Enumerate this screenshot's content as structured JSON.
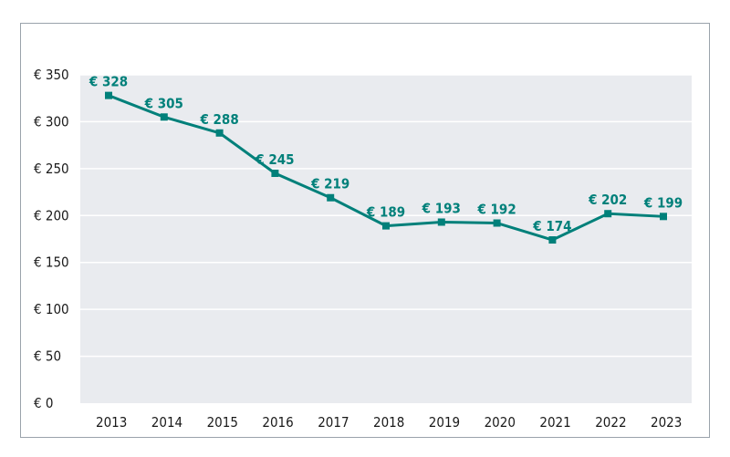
{
  "chart_data": {
    "type": "line",
    "categories": [
      "2013",
      "2014",
      "2015",
      "2016",
      "2017",
      "2018",
      "2019",
      "2020",
      "2021",
      "2022",
      "2023"
    ],
    "values": [
      328,
      305,
      288,
      245,
      219,
      189,
      193,
      192,
      174,
      202,
      199
    ],
    "data_labels": [
      "€ 328",
      "€ 305",
      "€ 288",
      "€ 245",
      "€ 219",
      "€ 189",
      "€ 193",
      "€ 192",
      "€ 174",
      "€ 202",
      "€ 199"
    ],
    "y_ticks": [
      0,
      50,
      100,
      150,
      200,
      250,
      300,
      350
    ],
    "y_tick_labels": [
      "€ 0",
      "€ 50",
      "€ 100",
      "€ 150",
      "€ 200",
      "€ 250",
      "€ 300",
      "€ 350"
    ],
    "ylim": [
      0,
      350
    ],
    "title": "",
    "xlabel": "",
    "ylabel": "",
    "grid": true,
    "legend": "none"
  },
  "colors": {
    "line": "#00807a",
    "plot_background": "#e9ebef",
    "grid": "#ffffff",
    "frame": "#9aa3ab",
    "text": "#1a1a1a"
  }
}
